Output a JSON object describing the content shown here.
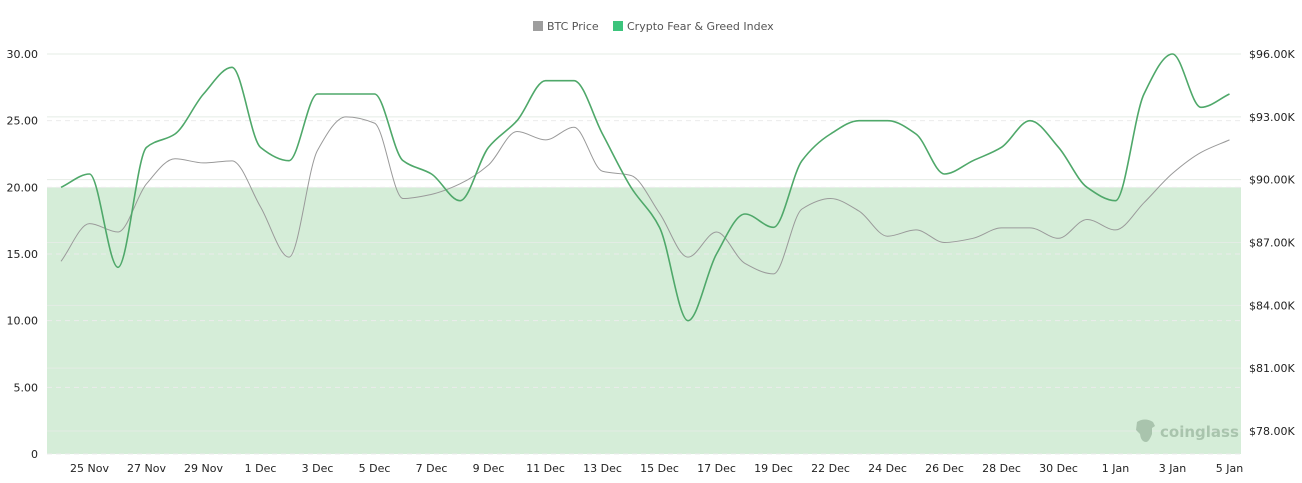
{
  "chart_data": {
    "type": "line",
    "title": "",
    "legend": {
      "placement": "top-center",
      "items": [
        {
          "label": "BTC Price",
          "color": "#9e9e9e"
        },
        {
          "label": "Crypto Fear & Greed Index",
          "color": "#3cc47c"
        }
      ]
    },
    "x": [
      "24 Nov",
      "25 Nov",
      "26 Nov",
      "27 Nov",
      "28 Nov",
      "29 Nov",
      "30 Nov",
      "1 Dec",
      "2 Dec",
      "3 Dec",
      "4 Dec",
      "5 Dec",
      "6 Dec",
      "7 Dec",
      "8 Dec",
      "9 Dec",
      "10 Dec",
      "11 Dec",
      "12 Dec",
      "13 Dec",
      "14 Dec",
      "15 Dec",
      "16 Dec",
      "17 Dec",
      "18 Dec",
      "19 Dec",
      "21 Dec",
      "22 Dec",
      "23 Dec",
      "24 Dec",
      "25 Dec",
      "26 Dec",
      "27 Dec",
      "28 Dec",
      "29 Dec",
      "30 Dec",
      "31 Dec",
      "1 Jan",
      "2 Jan",
      "3 Jan",
      "4 Jan",
      "5 Jan"
    ],
    "x_tick_labels": [
      "25 Nov",
      "27 Nov",
      "29 Nov",
      "1 Dec",
      "3 Dec",
      "5 Dec",
      "7 Dec",
      "9 Dec",
      "11 Dec",
      "13 Dec",
      "15 Dec",
      "17 Dec",
      "19 Dec",
      "22 Dec",
      "24 Dec",
      "26 Dec",
      "28 Dec",
      "30 Dec",
      "1 Jan",
      "3 Jan",
      "5 Jan"
    ],
    "series": [
      {
        "name": "Crypto Fear & Greed Index",
        "axis": "left",
        "color": "#4fa86a",
        "values": [
          20,
          21,
          14,
          23,
          24,
          27,
          29,
          23,
          22,
          27,
          27,
          27,
          22,
          21,
          19,
          23,
          25,
          28,
          28,
          24,
          20,
          17,
          10,
          15,
          18,
          17,
          22,
          24,
          25,
          25,
          24,
          21,
          22,
          23,
          25,
          23,
          20,
          19,
          27,
          30,
          26,
          27
        ]
      },
      {
        "name": "BTC Price",
        "axis": "right",
        "color": "#9a9a9a",
        "unit": "USD thousands",
        "values": [
          86.1,
          87.9,
          87.5,
          89.8,
          91.0,
          90.8,
          90.9,
          88.7,
          86.3,
          91.4,
          93.0,
          92.7,
          89.1,
          89.3,
          89.8,
          90.7,
          92.3,
          91.9,
          92.5,
          90.4,
          90.2,
          88.4,
          86.3,
          87.5,
          86.0,
          85.5,
          88.6,
          89.1,
          88.5,
          87.3,
          87.6,
          87.0,
          87.2,
          87.7,
          87.7,
          87.2,
          88.1,
          87.6,
          88.9,
          90.3,
          91.3,
          91.9
        ]
      }
    ],
    "y_left": {
      "ylim": [
        0,
        30
      ],
      "tick_labels": [
        "0",
        "5.00",
        "10.00",
        "15.00",
        "20.00",
        "25.00",
        "30.00"
      ]
    },
    "y_right": {
      "ylim": [
        78,
        96
      ],
      "tick_labels": [
        "$78.00K",
        "$81.00K",
        "$84.00K",
        "$87.00K",
        "$90.00K",
        "$93.00K",
        "$96.00K"
      ]
    },
    "shaded_band": {
      "axis": "left",
      "from": 0,
      "to": 20,
      "color": "#d5edd8"
    },
    "grid": true
  },
  "watermark": "coinglass"
}
